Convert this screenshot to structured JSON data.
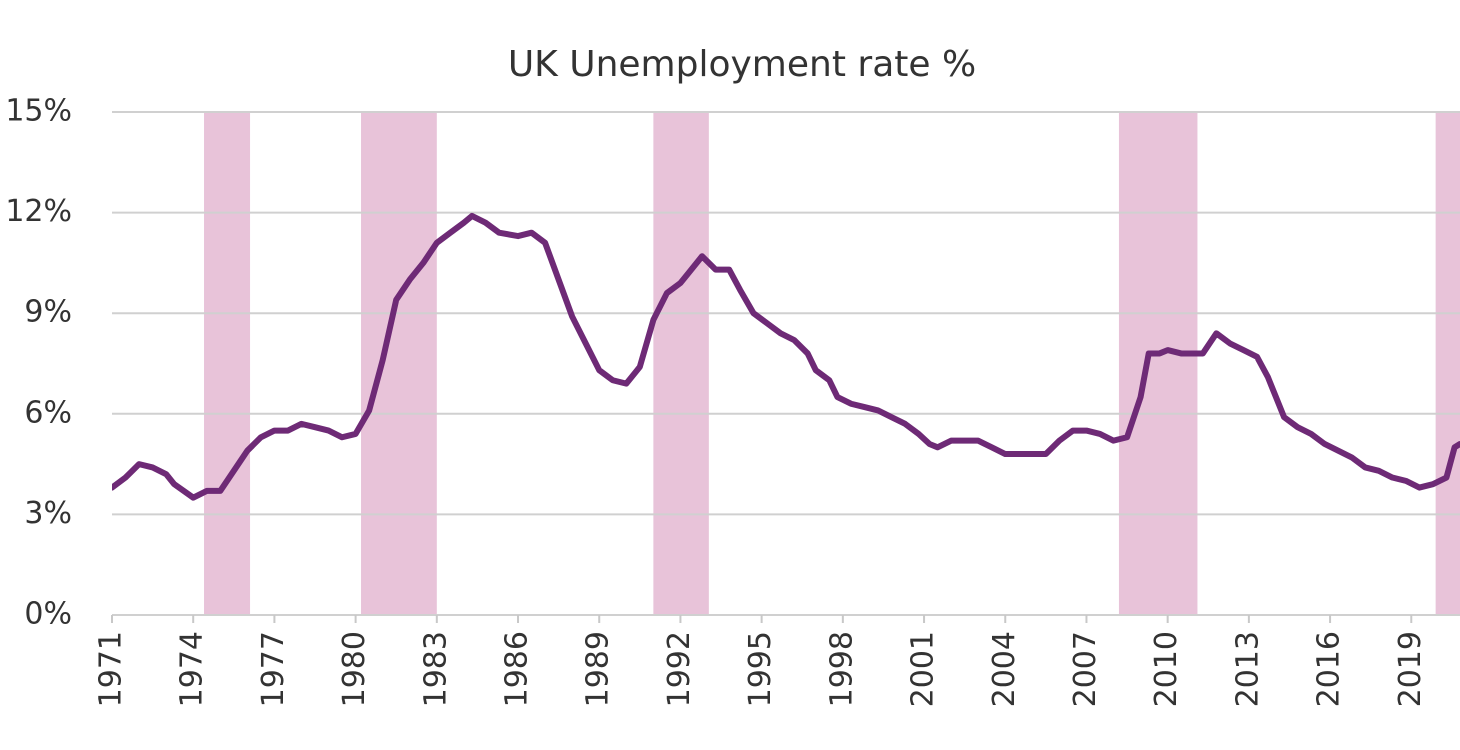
{
  "chart_data": {
    "type": "line",
    "title": "UK Unemployment rate %",
    "xlim": [
      1971,
      2020.8
    ],
    "xticks": [
      1971,
      1974,
      1977,
      1980,
      1983,
      1986,
      1989,
      1992,
      1995,
      1998,
      2001,
      2004,
      2007,
      2010,
      2013,
      2016,
      2019
    ],
    "ylim": [
      0,
      15
    ],
    "yticks": [
      {
        "value": 0,
        "label": "0%"
      },
      {
        "value": 3,
        "label": "3%"
      },
      {
        "value": 6,
        "label": "6%"
      },
      {
        "value": 9,
        "label": "9%"
      },
      {
        "value": 12,
        "label": "12%"
      },
      {
        "value": 15,
        "label": "15%"
      }
    ],
    "grid": true,
    "recession_color": "#e8c3d9",
    "recessions": [
      [
        1974.4,
        1976.1
      ],
      [
        1980.2,
        1983.0
      ],
      [
        1991.0,
        1993.05
      ],
      [
        2008.2,
        2011.1
      ],
      [
        2019.9,
        2020.8
      ]
    ],
    "series": [
      {
        "color": "#6e2a76",
        "x": [
          1971.0,
          1971.5,
          1972.0,
          1972.5,
          1973.0,
          1973.3,
          1974.0,
          1974.5,
          1975.0,
          1975.5,
          1976.0,
          1976.5,
          1977.0,
          1977.5,
          1978.0,
          1978.5,
          1979.0,
          1979.5,
          1980.0,
          1980.5,
          1981.0,
          1981.5,
          1982.0,
          1982.5,
          1983.0,
          1983.5,
          1984.0,
          1984.3,
          1984.8,
          1985.3,
          1986.0,
          1986.5,
          1987.0,
          1987.5,
          1988.0,
          1988.5,
          1989.0,
          1989.5,
          1990.0,
          1990.5,
          1991.0,
          1991.5,
          1992.0,
          1992.3,
          1992.8,
          1993.3,
          1993.8,
          1994.2,
          1994.7,
          1995.2,
          1995.7,
          1996.2,
          1996.7,
          1997.0,
          1997.5,
          1997.8,
          1998.3,
          1998.8,
          1999.3,
          1999.8,
          2000.3,
          2000.8,
          2001.2,
          2001.5,
          2002.0,
          2002.5,
          2003.0,
          2003.5,
          2004.0,
          2004.5,
          2005.0,
          2005.5,
          2006.0,
          2006.5,
          2007.0,
          2007.5,
          2008.0,
          2008.5,
          2009.0,
          2009.3,
          2009.7,
          2010.0,
          2010.5,
          2011.0,
          2011.3,
          2011.8,
          2012.3,
          2012.8,
          2013.3,
          2013.7,
          2014.0,
          2014.3,
          2014.8,
          2015.3,
          2015.8,
          2016.3,
          2016.8,
          2017.3,
          2017.8,
          2018.3,
          2018.8,
          2019.3,
          2019.8,
          2020.3,
          2020.6,
          2020.8
        ],
        "values": [
          3.8,
          4.1,
          4.5,
          4.4,
          4.2,
          3.9,
          3.5,
          3.7,
          3.7,
          4.3,
          4.9,
          5.3,
          5.5,
          5.5,
          5.7,
          5.6,
          5.5,
          5.3,
          5.4,
          6.1,
          7.6,
          9.4,
          10.0,
          10.5,
          11.1,
          11.4,
          11.7,
          11.9,
          11.7,
          11.4,
          11.3,
          11.4,
          11.1,
          10.0,
          8.9,
          8.1,
          7.3,
          7.0,
          6.9,
          7.4,
          8.8,
          9.6,
          9.9,
          10.2,
          10.7,
          10.3,
          10.3,
          9.7,
          9.0,
          8.7,
          8.4,
          8.2,
          7.8,
          7.3,
          7.0,
          6.5,
          6.3,
          6.2,
          6.1,
          5.9,
          5.7,
          5.4,
          5.1,
          5.0,
          5.2,
          5.2,
          5.2,
          5.0,
          4.8,
          4.8,
          4.8,
          4.8,
          5.2,
          5.5,
          5.5,
          5.4,
          5.2,
          5.3,
          6.5,
          7.8,
          7.8,
          7.9,
          7.8,
          7.8,
          7.8,
          8.4,
          8.1,
          7.9,
          7.7,
          7.1,
          6.5,
          5.9,
          5.6,
          5.4,
          5.1,
          4.9,
          4.7,
          4.4,
          4.3,
          4.1,
          4.0,
          3.8,
          3.9,
          4.1,
          5.0,
          5.1
        ]
      }
    ]
  }
}
